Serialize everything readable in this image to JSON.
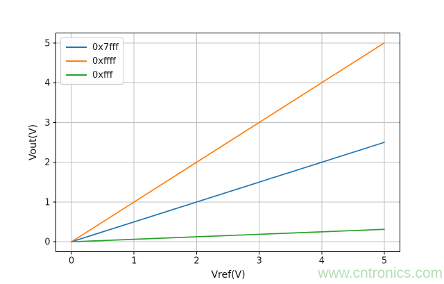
{
  "figure": {
    "background": "#ffffff",
    "watermark": {
      "text": "www.cntronics.com",
      "color": "#b4dfb6"
    }
  },
  "chart_data": {
    "type": "line",
    "title": "",
    "xlabel": "Vref(V)",
    "ylabel": "Vout(V)",
    "xlim": [
      -0.25,
      5.25
    ],
    "ylim": [
      -0.25,
      5.25
    ],
    "xticks": [
      0,
      1,
      2,
      3,
      4,
      5
    ],
    "yticks": [
      0,
      1,
      2,
      3,
      4,
      5
    ],
    "grid": true,
    "grid_color": "#c0c0c0",
    "spine_color": "#000000",
    "legend_position": "upper-left",
    "x": [
      0,
      1,
      2,
      3,
      4,
      5
    ],
    "series": [
      {
        "name": "0x7fff",
        "color": "#1f77b4",
        "values": [
          0,
          0.5,
          1.0,
          1.5,
          2.0,
          2.5
        ]
      },
      {
        "name": "0xffff",
        "color": "#ff7f0e",
        "values": [
          0,
          1,
          2,
          3,
          4,
          5
        ]
      },
      {
        "name": "0xfff",
        "color": "#2ca02c",
        "values": [
          0,
          0.0625,
          0.125,
          0.1875,
          0.25,
          0.3125
        ]
      }
    ]
  }
}
